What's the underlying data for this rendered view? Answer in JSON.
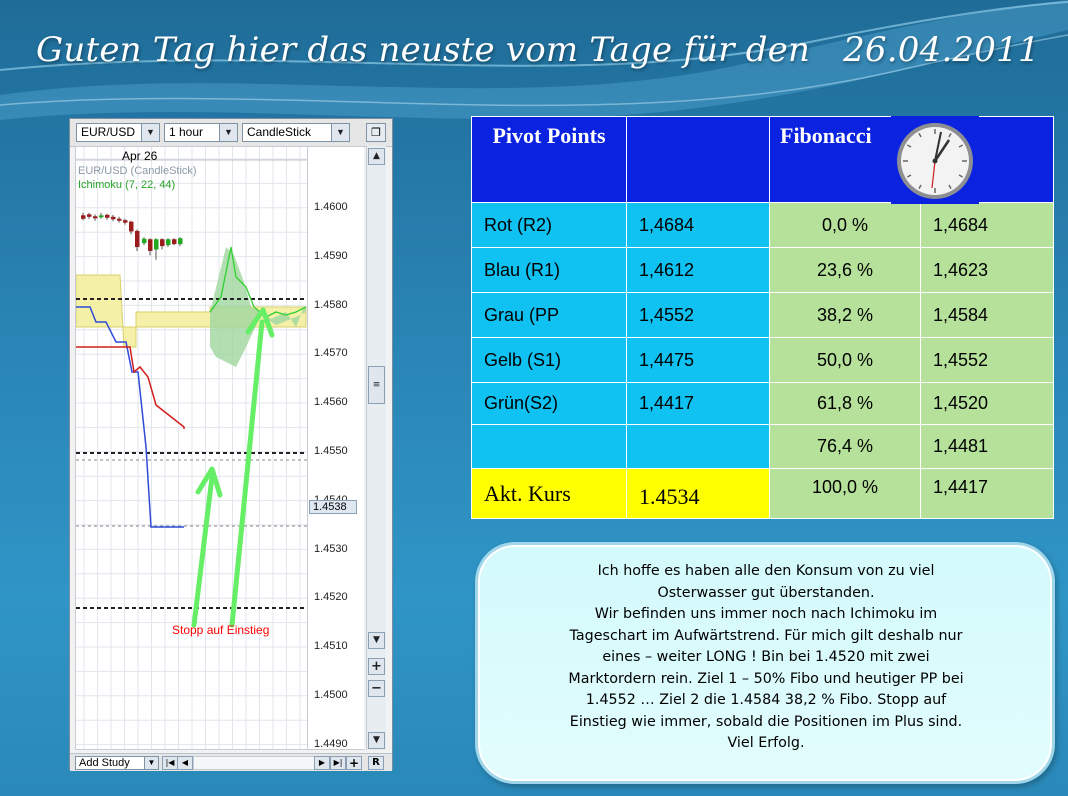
{
  "title": "Guten Tag hier das neuste vom Tage für den   26.04.2011",
  "chart": {
    "toolbar": {
      "symbol": "EUR/USD",
      "interval": "1 hour",
      "chart_type": "CandleStick"
    },
    "date_label": "Apr 26",
    "legend": [
      "EUR/USD (CandleStick)",
      "Ichimoku (7, 22, 44)"
    ],
    "price_ticks": [
      "1.4600",
      "1.4590",
      "1.4580",
      "1.4570",
      "1.4560",
      "1.4550",
      "1.4540",
      "1.4530",
      "1.4520",
      "1.4510",
      "1.4500",
      "1.4490"
    ],
    "current_price": "1.4538",
    "annotation": "Stopp auf Einstieg",
    "add_study_label": "Add Study",
    "reset_label": "R",
    "colors": {
      "bullish": "#1faa1f",
      "bearish": "#9b1c1c",
      "cloud": "#f4f0a8",
      "tenkan": "#2f4bd8",
      "kijun": "#d41d1d",
      "chikou": "#2fd02f",
      "arrow": "#66ee66",
      "annotation": "#ff0000"
    }
  },
  "pivot": {
    "header": {
      "col1": "Pivot Points",
      "col2": "",
      "col3": "Fibonacci"
    },
    "icon": "wall-clock-icon",
    "rows": [
      {
        "label": "Rot (R2)",
        "value": "1,4684",
        "fib_pct": "0,0  %",
        "fib_val": "1,4684"
      },
      {
        "label": "Blau (R1)",
        "value": "1,4612",
        "fib_pct": "23,6 %",
        "fib_val": "1,4623"
      },
      {
        "label": "Grau (PP",
        "value": "1,4552",
        "fib_pct": "38,2 %",
        "fib_val": "1,4584"
      },
      {
        "label": "Gelb (S1)",
        "value": "1,4475",
        "fib_pct": "50,0 %",
        "fib_val": "1,4552"
      },
      {
        "label": "Grün(S2)",
        "value": "1,4417",
        "fib_pct": "61,8 %",
        "fib_val": "1,4520"
      },
      {
        "label": "",
        "value": "",
        "fib_pct": "76,4 %",
        "fib_val": "1,4481"
      },
      {
        "label": "Akt. Kurs",
        "value": "1.4534",
        "fib_pct": "100,0 %",
        "fib_val": "1,4417"
      }
    ]
  },
  "message": "Ich hoffe es haben alle den Konsum von zu viel\nOsterwasser gut überstanden.\nWir befinden uns immer noch nach Ichimoku im\nTageschart im Aufwärtstrend. Für mich gilt deshalb nur\neines – weiter LONG ! Bin bei 1.4520 mit zwei\nMarktordern rein. Ziel 1 – 50% Fibo und heutiger PP bei\n1.4552 … Ziel 2 die 1.4584 38,2 % Fibo. Stopp auf\nEinstieg wie immer, sobald die Positionen im Plus sind.\nViel Erfolg."
}
